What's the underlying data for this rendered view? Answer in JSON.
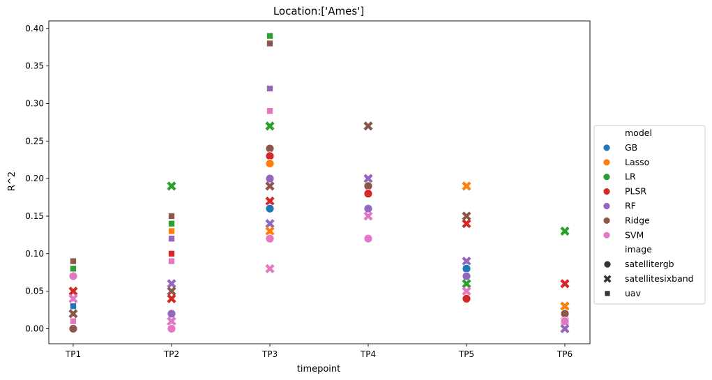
{
  "chart_data": {
    "type": "scatter",
    "title": "Location:['Ames']",
    "xlabel": "timepoint",
    "ylabel": "R^2",
    "categories": [
      "TP1",
      "TP2",
      "TP3",
      "TP4",
      "TP5",
      "TP6"
    ],
    "ylim": [
      -0.02,
      0.41
    ],
    "yticks": [
      0.0,
      0.05,
      0.1,
      0.15,
      0.2,
      0.25,
      0.3,
      0.35,
      0.4
    ],
    "ytick_labels": [
      "0.00",
      "0.05",
      "0.10",
      "0.15",
      "0.20",
      "0.25",
      "0.30",
      "0.35",
      "0.40"
    ],
    "grid": false,
    "legend": {
      "position": "center-right",
      "model_title": "model",
      "image_title": "image",
      "models": [
        {
          "name": "GB",
          "color": "#1f77b4"
        },
        {
          "name": "Lasso",
          "color": "#ff7f0e"
        },
        {
          "name": "LR",
          "color": "#2ca02c"
        },
        {
          "name": "PLSR",
          "color": "#d62728"
        },
        {
          "name": "RF",
          "color": "#9467bd"
        },
        {
          "name": "Ridge",
          "color": "#8c564b"
        },
        {
          "name": "SVM",
          "color": "#e377c2"
        }
      ],
      "images": [
        {
          "name": "satellitergb",
          "marker": "circle"
        },
        {
          "name": "satellitesixband",
          "marker": "x"
        },
        {
          "name": "uav",
          "marker": "square"
        }
      ]
    },
    "points": [
      {
        "x": "TP1",
        "model": "Ridge",
        "image": "uav",
        "y": 0.09
      },
      {
        "x": "TP1",
        "model": "LR",
        "image": "uav",
        "y": 0.08
      },
      {
        "x": "TP1",
        "model": "SVM",
        "image": "satellitergb",
        "y": 0.07
      },
      {
        "x": "TP1",
        "model": "PLSR",
        "image": "satellitesixband",
        "y": 0.05
      },
      {
        "x": "TP1",
        "model": "SVM",
        "image": "satellitesixband",
        "y": 0.04
      },
      {
        "x": "TP1",
        "model": "GB",
        "image": "uav",
        "y": 0.03
      },
      {
        "x": "TP1",
        "model": "Ridge",
        "image": "satellitesixband",
        "y": 0.02
      },
      {
        "x": "TP1",
        "model": "SVM",
        "image": "uav",
        "y": 0.01
      },
      {
        "x": "TP1",
        "model": "Ridge",
        "image": "satellitergb",
        "y": 0.0
      },
      {
        "x": "TP2",
        "model": "LR",
        "image": "satellitesixband",
        "y": 0.19
      },
      {
        "x": "TP2",
        "model": "Ridge",
        "image": "uav",
        "y": 0.15
      },
      {
        "x": "TP2",
        "model": "LR",
        "image": "uav",
        "y": 0.14
      },
      {
        "x": "TP2",
        "model": "Lasso",
        "image": "uav",
        "y": 0.13
      },
      {
        "x": "TP2",
        "model": "RF",
        "image": "uav",
        "y": 0.12
      },
      {
        "x": "TP2",
        "model": "PLSR",
        "image": "uav",
        "y": 0.1
      },
      {
        "x": "TP2",
        "model": "SVM",
        "image": "uav",
        "y": 0.09
      },
      {
        "x": "TP2",
        "model": "RF",
        "image": "satellitesixband",
        "y": 0.06
      },
      {
        "x": "TP2",
        "model": "Ridge",
        "image": "satellitesixband",
        "y": 0.05
      },
      {
        "x": "TP2",
        "model": "PLSR",
        "image": "satellitesixband",
        "y": 0.04
      },
      {
        "x": "TP2",
        "model": "RF",
        "image": "satellitergb",
        "y": 0.02
      },
      {
        "x": "TP2",
        "model": "GB",
        "image": "satellitesixband",
        "y": 0.01
      },
      {
        "x": "TP2",
        "model": "SVM",
        "image": "satellitesixband",
        "y": 0.01
      },
      {
        "x": "TP2",
        "model": "SVM",
        "image": "satellitergb",
        "y": 0.0
      },
      {
        "x": "TP3",
        "model": "LR",
        "image": "uav",
        "y": 0.39
      },
      {
        "x": "TP3",
        "model": "Ridge",
        "image": "uav",
        "y": 0.38
      },
      {
        "x": "TP3",
        "model": "RF",
        "image": "uav",
        "y": 0.32
      },
      {
        "x": "TP3",
        "model": "SVM",
        "image": "uav",
        "y": 0.29
      },
      {
        "x": "TP3",
        "model": "LR",
        "image": "satellitesixband",
        "y": 0.27
      },
      {
        "x": "TP3",
        "model": "Ridge",
        "image": "satellitergb",
        "y": 0.24
      },
      {
        "x": "TP3",
        "model": "PLSR",
        "image": "satellitergb",
        "y": 0.23
      },
      {
        "x": "TP3",
        "model": "Lasso",
        "image": "satellitergb",
        "y": 0.22
      },
      {
        "x": "TP3",
        "model": "RF",
        "image": "satellitergb",
        "y": 0.2
      },
      {
        "x": "TP3",
        "model": "Ridge",
        "image": "satellitesixband",
        "y": 0.19
      },
      {
        "x": "TP3",
        "model": "PLSR",
        "image": "satellitesixband",
        "y": 0.17
      },
      {
        "x": "TP3",
        "model": "GB",
        "image": "satellitergb",
        "y": 0.16
      },
      {
        "x": "TP3",
        "model": "RF",
        "image": "satellitesixband",
        "y": 0.14
      },
      {
        "x": "TP3",
        "model": "Lasso",
        "image": "satellitesixband",
        "y": 0.13
      },
      {
        "x": "TP3",
        "model": "SVM",
        "image": "satellitergb",
        "y": 0.12
      },
      {
        "x": "TP3",
        "model": "SVM",
        "image": "satellitesixband",
        "y": 0.08
      },
      {
        "x": "TP4",
        "model": "Ridge",
        "image": "satellitesixband",
        "y": 0.27
      },
      {
        "x": "TP4",
        "model": "RF",
        "image": "satellitesixband",
        "y": 0.2
      },
      {
        "x": "TP4",
        "model": "Ridge",
        "image": "satellitergb",
        "y": 0.19
      },
      {
        "x": "TP4",
        "model": "PLSR",
        "image": "satellitergb",
        "y": 0.18
      },
      {
        "x": "TP4",
        "model": "RF",
        "image": "satellitergb",
        "y": 0.16
      },
      {
        "x": "TP4",
        "model": "SVM",
        "image": "satellitesixband",
        "y": 0.15
      },
      {
        "x": "TP4",
        "model": "SVM",
        "image": "satellitergb",
        "y": 0.12
      },
      {
        "x": "TP5",
        "model": "Lasso",
        "image": "satellitesixband",
        "y": 0.19
      },
      {
        "x": "TP5",
        "model": "Ridge",
        "image": "satellitesixband",
        "y": 0.15
      },
      {
        "x": "TP5",
        "model": "PLSR",
        "image": "satellitesixband",
        "y": 0.14
      },
      {
        "x": "TP5",
        "model": "RF",
        "image": "satellitesixband",
        "y": 0.09
      },
      {
        "x": "TP5",
        "model": "GB",
        "image": "satellitergb",
        "y": 0.08
      },
      {
        "x": "TP5",
        "model": "RF",
        "image": "satellitergb",
        "y": 0.07
      },
      {
        "x": "TP5",
        "model": "LR",
        "image": "satellitesixband",
        "y": 0.06
      },
      {
        "x": "TP5",
        "model": "SVM",
        "image": "satellitesixband",
        "y": 0.05
      },
      {
        "x": "TP5",
        "model": "PLSR",
        "image": "satellitergb",
        "y": 0.04
      },
      {
        "x": "TP6",
        "model": "LR",
        "image": "satellitesixband",
        "y": 0.13
      },
      {
        "x": "TP6",
        "model": "PLSR",
        "image": "satellitesixband",
        "y": 0.06
      },
      {
        "x": "TP6",
        "model": "Ridge",
        "image": "satellitesixband",
        "y": 0.03
      },
      {
        "x": "TP6",
        "model": "Lasso",
        "image": "satellitesixband",
        "y": 0.03
      },
      {
        "x": "TP6",
        "model": "Ridge",
        "image": "satellitergb",
        "y": 0.02
      },
      {
        "x": "TP6",
        "model": "SVM",
        "image": "satellitesixband",
        "y": 0.01
      },
      {
        "x": "TP6",
        "model": "SVM",
        "image": "satellitergb",
        "y": 0.01
      },
      {
        "x": "TP6",
        "model": "RF",
        "image": "satellitesixband",
        "y": 0.0
      }
    ]
  }
}
